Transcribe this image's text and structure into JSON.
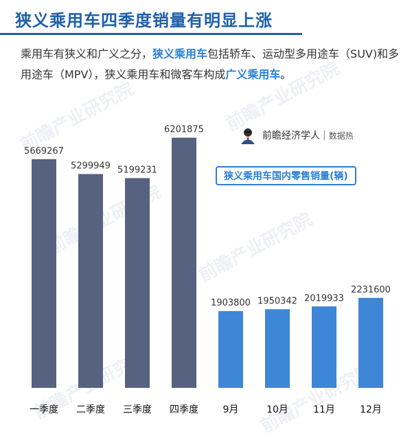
{
  "header": {
    "title": "狭义乘用车四季度销量有明显上涨"
  },
  "intro": {
    "part1": "乘用车有狭义和广义之分，",
    "hl1": "狭义乘用车",
    "part2": "包括轿车、运动型多用途车（SUV)和多用途车（MPV），狭义乘用车和微客车构成",
    "hl2": "广义乘用车",
    "part3": "。"
  },
  "brand": {
    "name": "前瞻经济学人",
    "sub": "数据热"
  },
  "watermark": "前瞻产业研究院",
  "chart_data": {
    "type": "bar",
    "title": "狭义乘用车国内零售销量(辆)",
    "categories": [
      "一季度",
      "二季度",
      "三季度",
      "四季度",
      "9月",
      "10月",
      "11月",
      "12月"
    ],
    "values": [
      5669267,
      5299949,
      5199231,
      6201875,
      1903800,
      1950342,
      2019933,
      2231600
    ],
    "colors": [
      "#56627f",
      "#56627f",
      "#56627f",
      "#56627f",
      "#3e86d6",
      "#3e86d6",
      "#3e86d6",
      "#3e86d6"
    ],
    "ylim": [
      0,
      6500000
    ],
    "grid": false
  }
}
